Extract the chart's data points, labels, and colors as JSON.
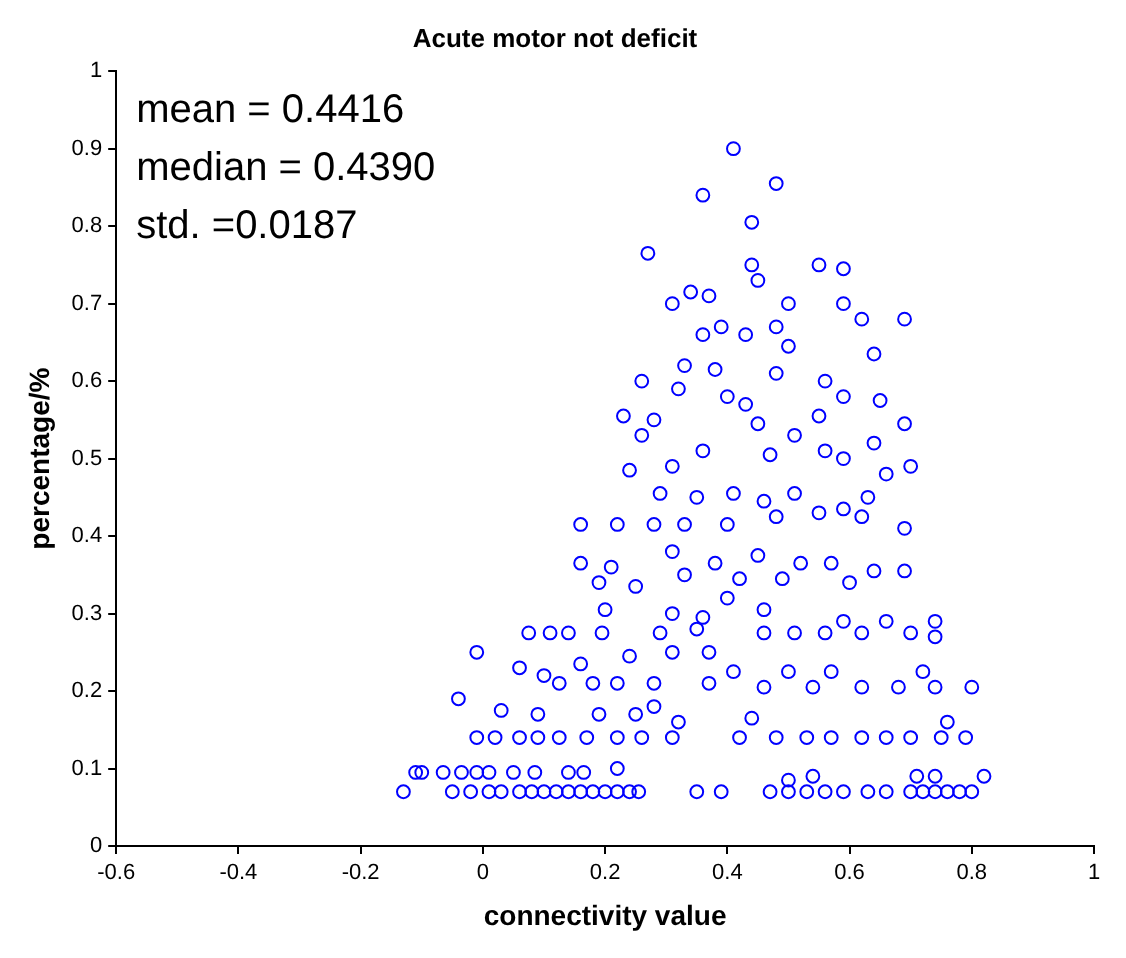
{
  "chart_data": {
    "type": "scatter",
    "title": "Acute motor not deficit",
    "xlabel": "connectivity value",
    "ylabel": "percentage/%",
    "annotations": [
      "mean = 0.4416",
      "median = 0.4390",
      "std. =0.0187"
    ],
    "marker": "circle",
    "grid": false,
    "legend": false,
    "xlim": [
      -0.6,
      1
    ],
    "xticks": [
      -0.6,
      -0.4,
      -0.2,
      0,
      0.2,
      0.4,
      0.6,
      0.8,
      1
    ],
    "ylim": [
      0,
      1
    ],
    "yticks": [
      0,
      0.1,
      0.2,
      0.3,
      0.4,
      0.5,
      0.6,
      0.7,
      0.8,
      0.9,
      1
    ],
    "series": [
      {
        "color": "#0000ff",
        "x": [
          0.41,
          0.48,
          0.36,
          0.44,
          0.27,
          0.55,
          0.59,
          0.44,
          0.45,
          0.34,
          0.37,
          0.31,
          0.5,
          0.59,
          0.69,
          0.62,
          0.39,
          0.48,
          0.36,
          0.43,
          0.64,
          0.5,
          0.33,
          0.38,
          0.48,
          0.26,
          0.56,
          0.32,
          0.4,
          0.43,
          0.59,
          0.65,
          0.23,
          0.55,
          0.28,
          0.69,
          0.45,
          0.51,
          0.26,
          0.64,
          0.56,
          0.47,
          0.36,
          0.31,
          0.7,
          0.24,
          0.59,
          0.66,
          0.29,
          0.41,
          0.51,
          0.35,
          0.46,
          0.63,
          0.59,
          0.48,
          0.33,
          0.4,
          0.16,
          0.22,
          0.55,
          0.69,
          0.28,
          0.62,
          0.31,
          0.45,
          0.38,
          0.52,
          0.16,
          0.21,
          0.57,
          0.64,
          0.33,
          0.69,
          0.42,
          0.19,
          0.49,
          0.6,
          0.4,
          0.25,
          0.2,
          0.46,
          0.31,
          0.36,
          0.74,
          0.59,
          0.66,
          0.075,
          0.11,
          0.14,
          0.195,
          0.46,
          0.51,
          0.56,
          0.62,
          0.7,
          0.74,
          0.29,
          0.35,
          -0.01,
          0.37,
          0.24,
          0.31,
          0.06,
          0.16,
          0.41,
          0.5,
          0.57,
          0.72,
          0.1,
          0.125,
          0.18,
          0.22,
          0.28,
          0.37,
          0.46,
          0.54,
          0.62,
          0.68,
          0.8,
          0.74,
          -0.04,
          0.03,
          0.28,
          0.09,
          0.19,
          0.25,
          0.44,
          0.76,
          0.32,
          -0.01,
          0.02,
          0.06,
          0.09,
          0.125,
          0.17,
          0.22,
          0.26,
          0.31,
          0.42,
          0.48,
          0.53,
          0.57,
          0.62,
          0.66,
          0.7,
          0.75,
          0.79,
          0.54,
          0.5,
          -0.11,
          -0.1,
          -0.065,
          -0.035,
          -0.01,
          0.01,
          0.05,
          0.085,
          0.14,
          0.165,
          0.22,
          0.71,
          0.74,
          0.82,
          -0.13,
          -0.05,
          -0.02,
          0.01,
          0.03,
          0.06,
          0.08,
          0.1,
          0.12,
          0.14,
          0.16,
          0.18,
          0.2,
          0.22,
          0.24,
          0.255,
          0.35,
          0.39,
          0.47,
          0.5,
          0.53,
          0.56,
          0.59,
          0.63,
          0.66,
          0.7,
          0.72,
          0.74,
          0.76,
          0.78,
          0.8
        ],
        "values": [
          0.9,
          0.855,
          0.84,
          0.805,
          0.765,
          0.75,
          0.745,
          0.75,
          0.73,
          0.715,
          0.71,
          0.7,
          0.7,
          0.7,
          0.68,
          0.68,
          0.67,
          0.67,
          0.66,
          0.66,
          0.635,
          0.645,
          0.62,
          0.615,
          0.61,
          0.6,
          0.6,
          0.59,
          0.58,
          0.57,
          0.58,
          0.575,
          0.555,
          0.555,
          0.55,
          0.545,
          0.545,
          0.53,
          0.53,
          0.52,
          0.51,
          0.505,
          0.51,
          0.49,
          0.49,
          0.485,
          0.5,
          0.48,
          0.455,
          0.455,
          0.455,
          0.45,
          0.445,
          0.45,
          0.435,
          0.425,
          0.415,
          0.415,
          0.415,
          0.415,
          0.43,
          0.41,
          0.415,
          0.425,
          0.38,
          0.375,
          0.365,
          0.365,
          0.365,
          0.36,
          0.365,
          0.355,
          0.35,
          0.355,
          0.345,
          0.34,
          0.345,
          0.34,
          0.32,
          0.335,
          0.305,
          0.305,
          0.3,
          0.295,
          0.29,
          0.29,
          0.29,
          0.275,
          0.275,
          0.275,
          0.275,
          0.275,
          0.275,
          0.275,
          0.275,
          0.275,
          0.27,
          0.275,
          0.28,
          0.25,
          0.25,
          0.245,
          0.25,
          0.23,
          0.235,
          0.225,
          0.225,
          0.225,
          0.225,
          0.22,
          0.21,
          0.21,
          0.21,
          0.21,
          0.21,
          0.205,
          0.205,
          0.205,
          0.205,
          0.205,
          0.205,
          0.19,
          0.175,
          0.18,
          0.17,
          0.17,
          0.17,
          0.165,
          0.16,
          0.16,
          0.14,
          0.14,
          0.14,
          0.14,
          0.14,
          0.14,
          0.14,
          0.14,
          0.14,
          0.14,
          0.14,
          0.14,
          0.14,
          0.14,
          0.14,
          0.14,
          0.14,
          0.14,
          0.09,
          0.085,
          0.095,
          0.095,
          0.095,
          0.095,
          0.095,
          0.095,
          0.095,
          0.095,
          0.095,
          0.095,
          0.1,
          0.09,
          0.09,
          0.09,
          0.07,
          0.07,
          0.07,
          0.07,
          0.07,
          0.07,
          0.07,
          0.07,
          0.07,
          0.07,
          0.07,
          0.07,
          0.07,
          0.07,
          0.07,
          0.07,
          0.07,
          0.07,
          0.07,
          0.07,
          0.07,
          0.07,
          0.07,
          0.07,
          0.07,
          0.07,
          0.07,
          0.07,
          0.07,
          0.07,
          0.07
        ]
      }
    ]
  }
}
